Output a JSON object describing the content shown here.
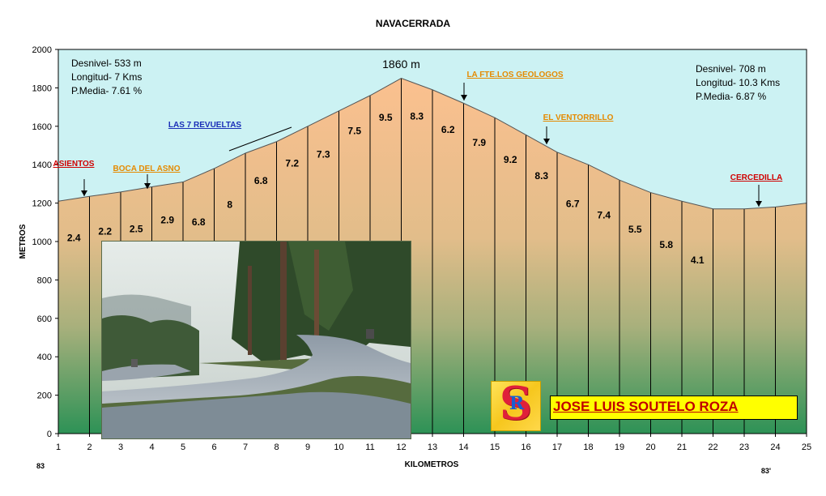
{
  "chart_data": {
    "type": "area",
    "title": "NAVACERRADA",
    "xlabel": "KILOMETROS",
    "ylabel": "METROS",
    "xlim": [
      1,
      25
    ],
    "ylim": [
      0,
      2000
    ],
    "x_ticks": [
      "1",
      "2",
      "3",
      "4",
      "5",
      "6",
      "7",
      "8",
      "9",
      "10",
      "11",
      "12",
      "13",
      "14",
      "15",
      "16",
      "17",
      "18",
      "19",
      "20",
      "21",
      "22",
      "23",
      "24",
      "25"
    ],
    "y_ticks": [
      "0",
      "200",
      "400",
      "600",
      "800",
      "1000",
      "1200",
      "1400",
      "1600",
      "1800",
      "2000"
    ],
    "x": [
      1,
      2,
      3,
      4,
      5,
      6,
      7,
      8,
      9,
      10,
      11,
      12,
      13,
      14,
      15,
      16,
      17,
      18,
      19,
      20,
      21,
      22,
      23,
      24,
      25
    ],
    "altitude": [
      1210,
      1235,
      1258,
      1285,
      1310,
      1380,
      1460,
      1520,
      1600,
      1680,
      1760,
      1850,
      1790,
      1720,
      1645,
      1555,
      1465,
      1400,
      1320,
      1255,
      1210,
      1170,
      1170,
      1180,
      1200
    ],
    "segment_gradients": [
      {
        "x": 1.5,
        "label": "2.4"
      },
      {
        "x": 2.5,
        "label": "2.2"
      },
      {
        "x": 3.5,
        "label": "2.5"
      },
      {
        "x": 4.5,
        "label": "2.9"
      },
      {
        "x": 5.5,
        "label": "6.8"
      },
      {
        "x": 6.5,
        "label": "8"
      },
      {
        "x": 7.5,
        "label": "6.8"
      },
      {
        "x": 8.5,
        "label": "7.2"
      },
      {
        "x": 9.5,
        "label": "7.3"
      },
      {
        "x": 10.5,
        "label": "7.5"
      },
      {
        "x": 11.5,
        "label": "9.5"
      },
      {
        "x": 12.5,
        "label": "8.3"
      },
      {
        "x": 13.5,
        "label": "6.2"
      },
      {
        "x": 14.5,
        "label": "7.9"
      },
      {
        "x": 15.5,
        "label": "9.2"
      },
      {
        "x": 16.5,
        "label": "8.3"
      },
      {
        "x": 17.5,
        "label": "6.7"
      },
      {
        "x": 18.5,
        "label": "7.4"
      },
      {
        "x": 19.5,
        "label": "5.5"
      },
      {
        "x": 20.5,
        "label": "5.8"
      },
      {
        "x": 21.5,
        "label": "4.1"
      }
    ],
    "peak": {
      "x": 12,
      "label": "1860 m"
    },
    "places": [
      {
        "label": "ASIENTOS",
        "x": 1.9,
        "color": "#d00000"
      },
      {
        "label": "BOCA DEL ASNO",
        "x": 3.9,
        "color": "#e58a00"
      },
      {
        "label": "LAS 7 REVUELTAS",
        "x": 7.5,
        "color": "#1a2fb8"
      },
      {
        "label": "LA FTE.LOS GEOLOGOS",
        "x": 14.0,
        "color": "#e58a00"
      },
      {
        "label": "EL VENTORRILLO",
        "x": 16.7,
        "color": "#e58a00"
      },
      {
        "label": "CERCEDILLA",
        "x": 23.4,
        "color": "#d00000"
      }
    ],
    "left_stats": [
      "Desnivel- 533 m",
      "Longitud- 7 Kms",
      "P.Media- 7.61 %"
    ],
    "right_stats": [
      "Desnivel- 708 m",
      "Longitud- 10.3 Kms",
      "P.Media- 6.87 %"
    ],
    "road_left": "83",
    "road_right": "83'",
    "colors": {
      "sky": "#ccf2f3",
      "fill_top": "#fbc08f",
      "fill_mid": "#c4b786",
      "fill_bottom": "#2d9256"
    }
  },
  "author": "JOSE LUIS SOUTELO ROZA",
  "logo": {
    "big": "S",
    "small": "R"
  }
}
